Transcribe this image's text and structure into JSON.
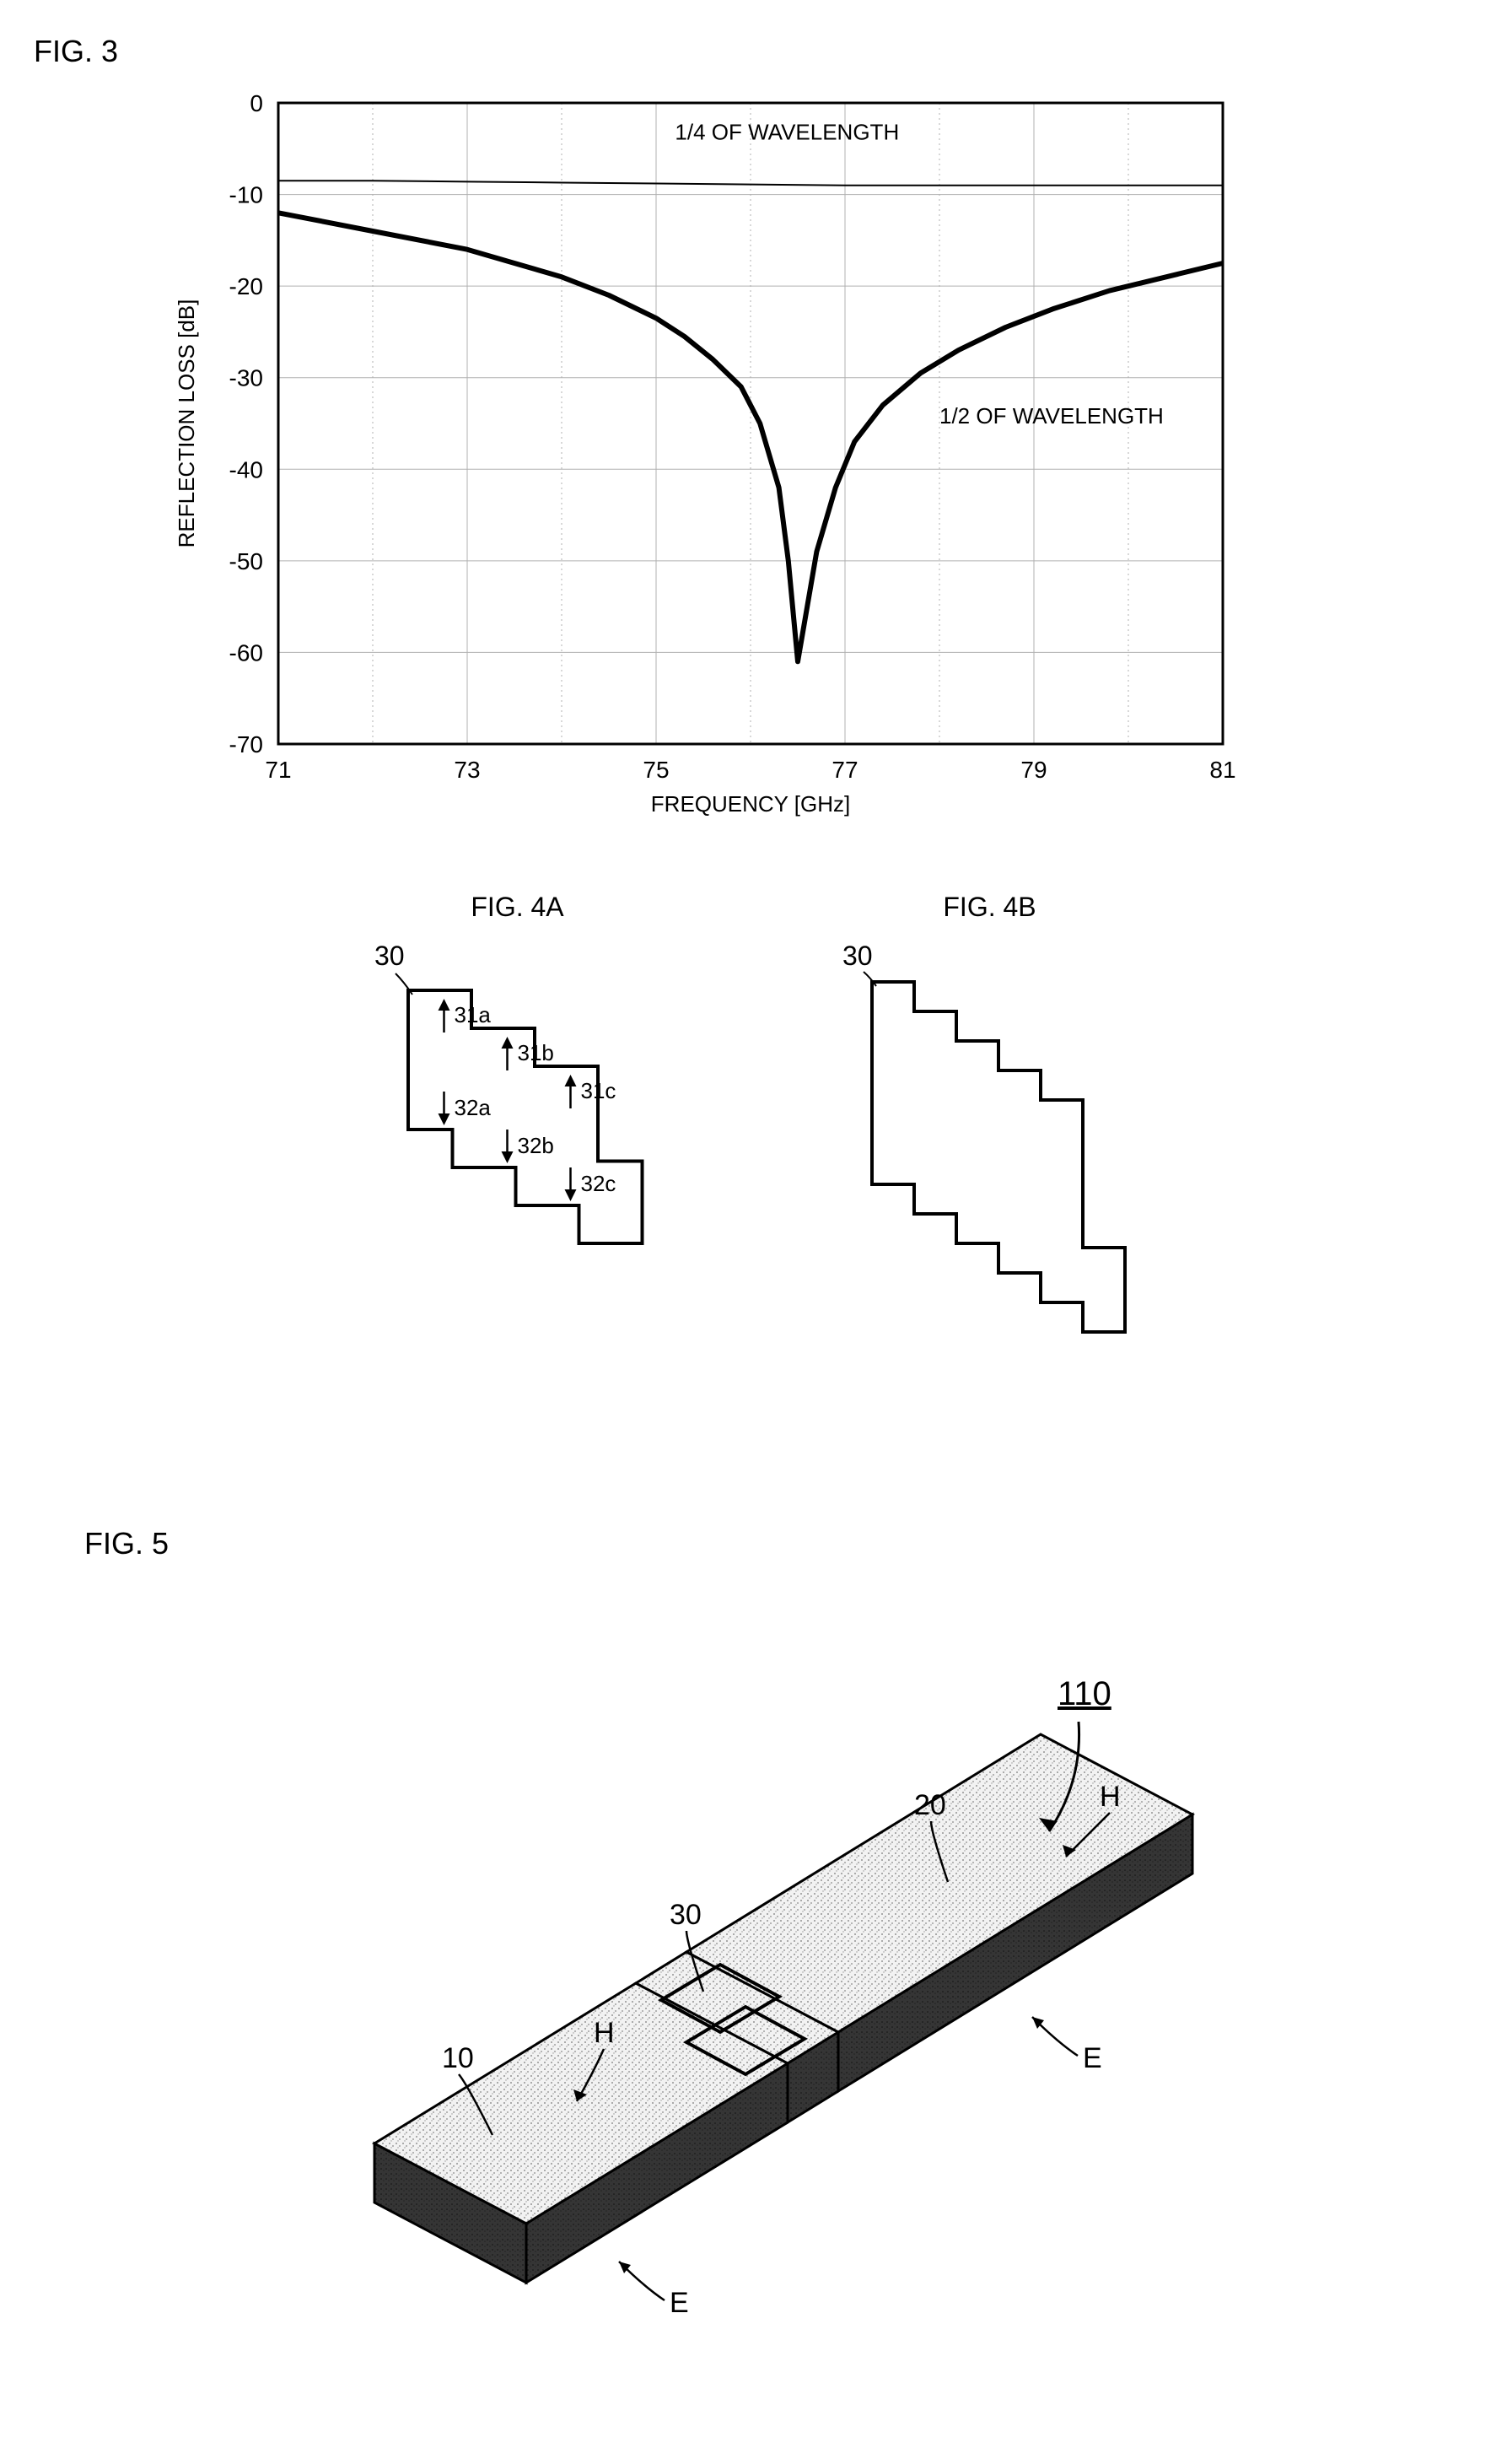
{
  "fig3": {
    "label": "FIG. 3",
    "type": "line",
    "xlabel": "FREQUENCY [GHz]",
    "ylabel": "REFLECTION LOSS [dB]",
    "xlim": [
      71,
      81
    ],
    "ylim": [
      -70,
      0
    ],
    "xticks": [
      71,
      73,
      75,
      77,
      79,
      81
    ],
    "yticks": [
      0,
      -10,
      -20,
      -30,
      -40,
      -50,
      -60,
      -70
    ],
    "grid_color": "#b0b0b0",
    "background_color": "#ffffff",
    "axis_color": "#000000",
    "label_fontsize": 26,
    "tick_fontsize": 28,
    "annotation_fontsize": 26,
    "series": [
      {
        "name": "1/4 OF WAVELENGTH",
        "annotation_x": 75.2,
        "annotation_y": -4,
        "color": "#000000",
        "line_width": 2,
        "points": [
          [
            71,
            -8.5
          ],
          [
            72,
            -8.5
          ],
          [
            73,
            -8.6
          ],
          [
            74,
            -8.7
          ],
          [
            75,
            -8.8
          ],
          [
            76,
            -8.9
          ],
          [
            77,
            -9.0
          ],
          [
            78,
            -9.0
          ],
          [
            79,
            -9.0
          ],
          [
            80,
            -9.0
          ],
          [
            81,
            -9.0
          ]
        ]
      },
      {
        "name": "1/2 OF WAVELENGTH",
        "annotation_x": 78.0,
        "annotation_y": -35,
        "color": "#000000",
        "line_width": 6,
        "points": [
          [
            71,
            -12
          ],
          [
            72,
            -14
          ],
          [
            73,
            -16
          ],
          [
            73.5,
            -17.5
          ],
          [
            74,
            -19
          ],
          [
            74.5,
            -21
          ],
          [
            75,
            -23.5
          ],
          [
            75.3,
            -25.5
          ],
          [
            75.6,
            -28
          ],
          [
            75.9,
            -31
          ],
          [
            76.1,
            -35
          ],
          [
            76.3,
            -42
          ],
          [
            76.4,
            -50
          ],
          [
            76.5,
            -61
          ],
          [
            76.6,
            -55
          ],
          [
            76.7,
            -49
          ],
          [
            76.9,
            -42
          ],
          [
            77.1,
            -37
          ],
          [
            77.4,
            -33
          ],
          [
            77.8,
            -29.5
          ],
          [
            78.2,
            -27
          ],
          [
            78.7,
            -24.5
          ],
          [
            79.2,
            -22.5
          ],
          [
            79.8,
            -20.5
          ],
          [
            80.4,
            -19
          ],
          [
            81,
            -17.5
          ]
        ]
      }
    ]
  },
  "fig4a": {
    "label": "FIG. 4A",
    "callout": "30",
    "stroke": "#000000",
    "stroke_width": 4,
    "text_fontsize": 26,
    "arrows": [
      {
        "up": "31a",
        "down": "32a"
      },
      {
        "up": "31b",
        "down": "32b"
      },
      {
        "up": "31c",
        "down": "32c"
      }
    ]
  },
  "fig4b": {
    "label": "FIG. 4B",
    "callout": "30",
    "stroke": "#000000",
    "stroke_width": 4,
    "text_fontsize": 26
  },
  "fig5": {
    "label": "FIG. 5",
    "main_callout": "110",
    "callouts": [
      "10",
      "30",
      "20"
    ],
    "face_labels": [
      "H",
      "H",
      "E",
      "E"
    ],
    "stroke": "#000000",
    "fill_top": "#e8e8e8",
    "fill_side": "#404040",
    "text_fontsize": 34
  }
}
